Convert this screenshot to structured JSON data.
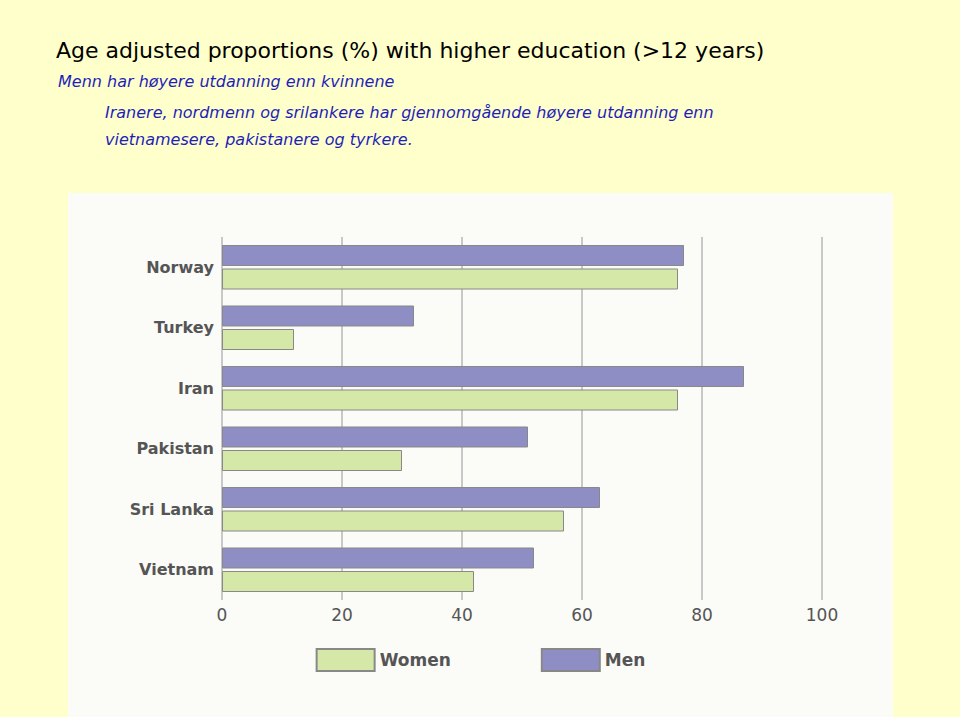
{
  "slide": {
    "title": "Age adjusted proportions (%) with higher education (>12 years)",
    "notes": [
      "Menn har høyere utdanning enn kvinnene",
      "Iranere, nordmenn og srilankere har gjennomgående høyere utdanning enn vietnamesere, pakistanere og tyrkere."
    ]
  },
  "chart_data": {
    "type": "bar",
    "orientation": "horizontal",
    "categories": [
      "Norway",
      "Turkey",
      "Iran",
      "Pakistan",
      "Sri Lanka",
      "Vietnam"
    ],
    "series": [
      {
        "name": "Women",
        "color": "#d6e8a8",
        "values": [
          76,
          12,
          76,
          30,
          57,
          42
        ]
      },
      {
        "name": "Men",
        "color": "#8e8ec4",
        "values": [
          77,
          32,
          87,
          51,
          63,
          52
        ]
      }
    ],
    "xlim": [
      0,
      100
    ],
    "xticks": [
      0,
      20,
      40,
      60,
      80,
      100
    ],
    "grid": true,
    "legend": "bottom"
  }
}
